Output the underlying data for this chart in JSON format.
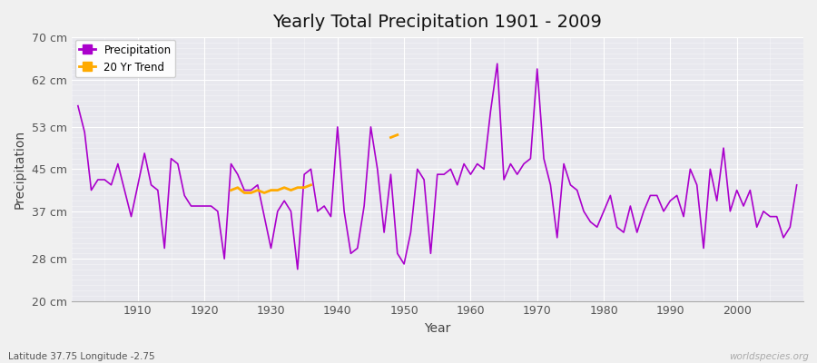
{
  "title": "Yearly Total Precipitation 1901 - 2009",
  "xlabel": "Year",
  "ylabel": "Precipitation",
  "lat_lon_label": "Latitude 37.75 Longitude -2.75",
  "watermark": "worldspecies.org",
  "bg_color": "#f0f0f0",
  "plot_bg_color": "#e8e8ee",
  "line_color": "#aa00cc",
  "trend_color": "#ffaa00",
  "ylim": [
    20,
    70
  ],
  "yticks": [
    20,
    28,
    37,
    45,
    53,
    62,
    70
  ],
  "ytick_labels": [
    "20 cm",
    "28 cm",
    "37 cm",
    "45 cm",
    "53 cm",
    "62 cm",
    "70 cm"
  ],
  "xlim": [
    1900,
    2010
  ],
  "xticks": [
    1910,
    1920,
    1930,
    1940,
    1950,
    1960,
    1970,
    1980,
    1990,
    2000
  ],
  "years": [
    1901,
    1902,
    1903,
    1904,
    1905,
    1906,
    1907,
    1908,
    1909,
    1910,
    1911,
    1912,
    1913,
    1914,
    1915,
    1916,
    1917,
    1918,
    1919,
    1920,
    1921,
    1922,
    1923,
    1924,
    1925,
    1926,
    1927,
    1928,
    1929,
    1930,
    1931,
    1932,
    1933,
    1934,
    1935,
    1936,
    1937,
    1938,
    1939,
    1940,
    1941,
    1942,
    1943,
    1944,
    1945,
    1946,
    1947,
    1948,
    1949,
    1950,
    1951,
    1952,
    1953,
    1954,
    1955,
    1956,
    1957,
    1958,
    1959,
    1960,
    1961,
    1962,
    1963,
    1964,
    1965,
    1966,
    1967,
    1968,
    1969,
    1970,
    1971,
    1972,
    1973,
    1974,
    1975,
    1976,
    1977,
    1978,
    1979,
    1980,
    1981,
    1982,
    1983,
    1984,
    1985,
    1986,
    1987,
    1988,
    1989,
    1990,
    1991,
    1992,
    1993,
    1994,
    1995,
    1996,
    1997,
    1998,
    1999,
    2000,
    2001,
    2002,
    2003,
    2004,
    2005,
    2006,
    2007,
    2008,
    2009
  ],
  "precip": [
    57,
    52,
    41,
    43,
    43,
    42,
    46,
    41,
    36,
    42,
    48,
    42,
    41,
    30,
    47,
    46,
    40,
    38,
    38,
    38,
    38,
    37,
    28,
    46,
    44,
    41,
    41,
    42,
    36,
    30,
    37,
    39,
    37,
    26,
    44,
    45,
    37,
    38,
    36,
    53,
    37,
    29,
    30,
    38,
    53,
    45,
    33,
    44,
    29,
    27,
    33,
    45,
    43,
    29,
    44,
    44,
    45,
    42,
    46,
    44,
    46,
    45,
    56,
    65,
    43,
    46,
    44,
    46,
    47,
    64,
    47,
    42,
    32,
    46,
    42,
    41,
    37,
    35,
    34,
    37,
    40,
    34,
    33,
    38,
    33,
    37,
    40,
    40,
    37,
    39,
    40,
    36,
    45,
    42,
    30,
    45,
    39,
    49,
    37,
    41,
    38,
    41,
    34,
    37,
    36,
    36,
    32,
    34,
    42
  ],
  "trend_years": [
    1924,
    1925,
    1926,
    1927,
    1928,
    1929,
    1930,
    1931,
    1932,
    1933,
    1934,
    1935,
    1936
  ],
  "trend_values": [
    41.0,
    41.5,
    40.5,
    40.5,
    41.0,
    40.5,
    41.0,
    41.0,
    41.5,
    41.0,
    41.5,
    41.5,
    42.0
  ],
  "trend2_years": [
    1948,
    1949
  ],
  "trend2_values": [
    51.0,
    51.5
  ]
}
